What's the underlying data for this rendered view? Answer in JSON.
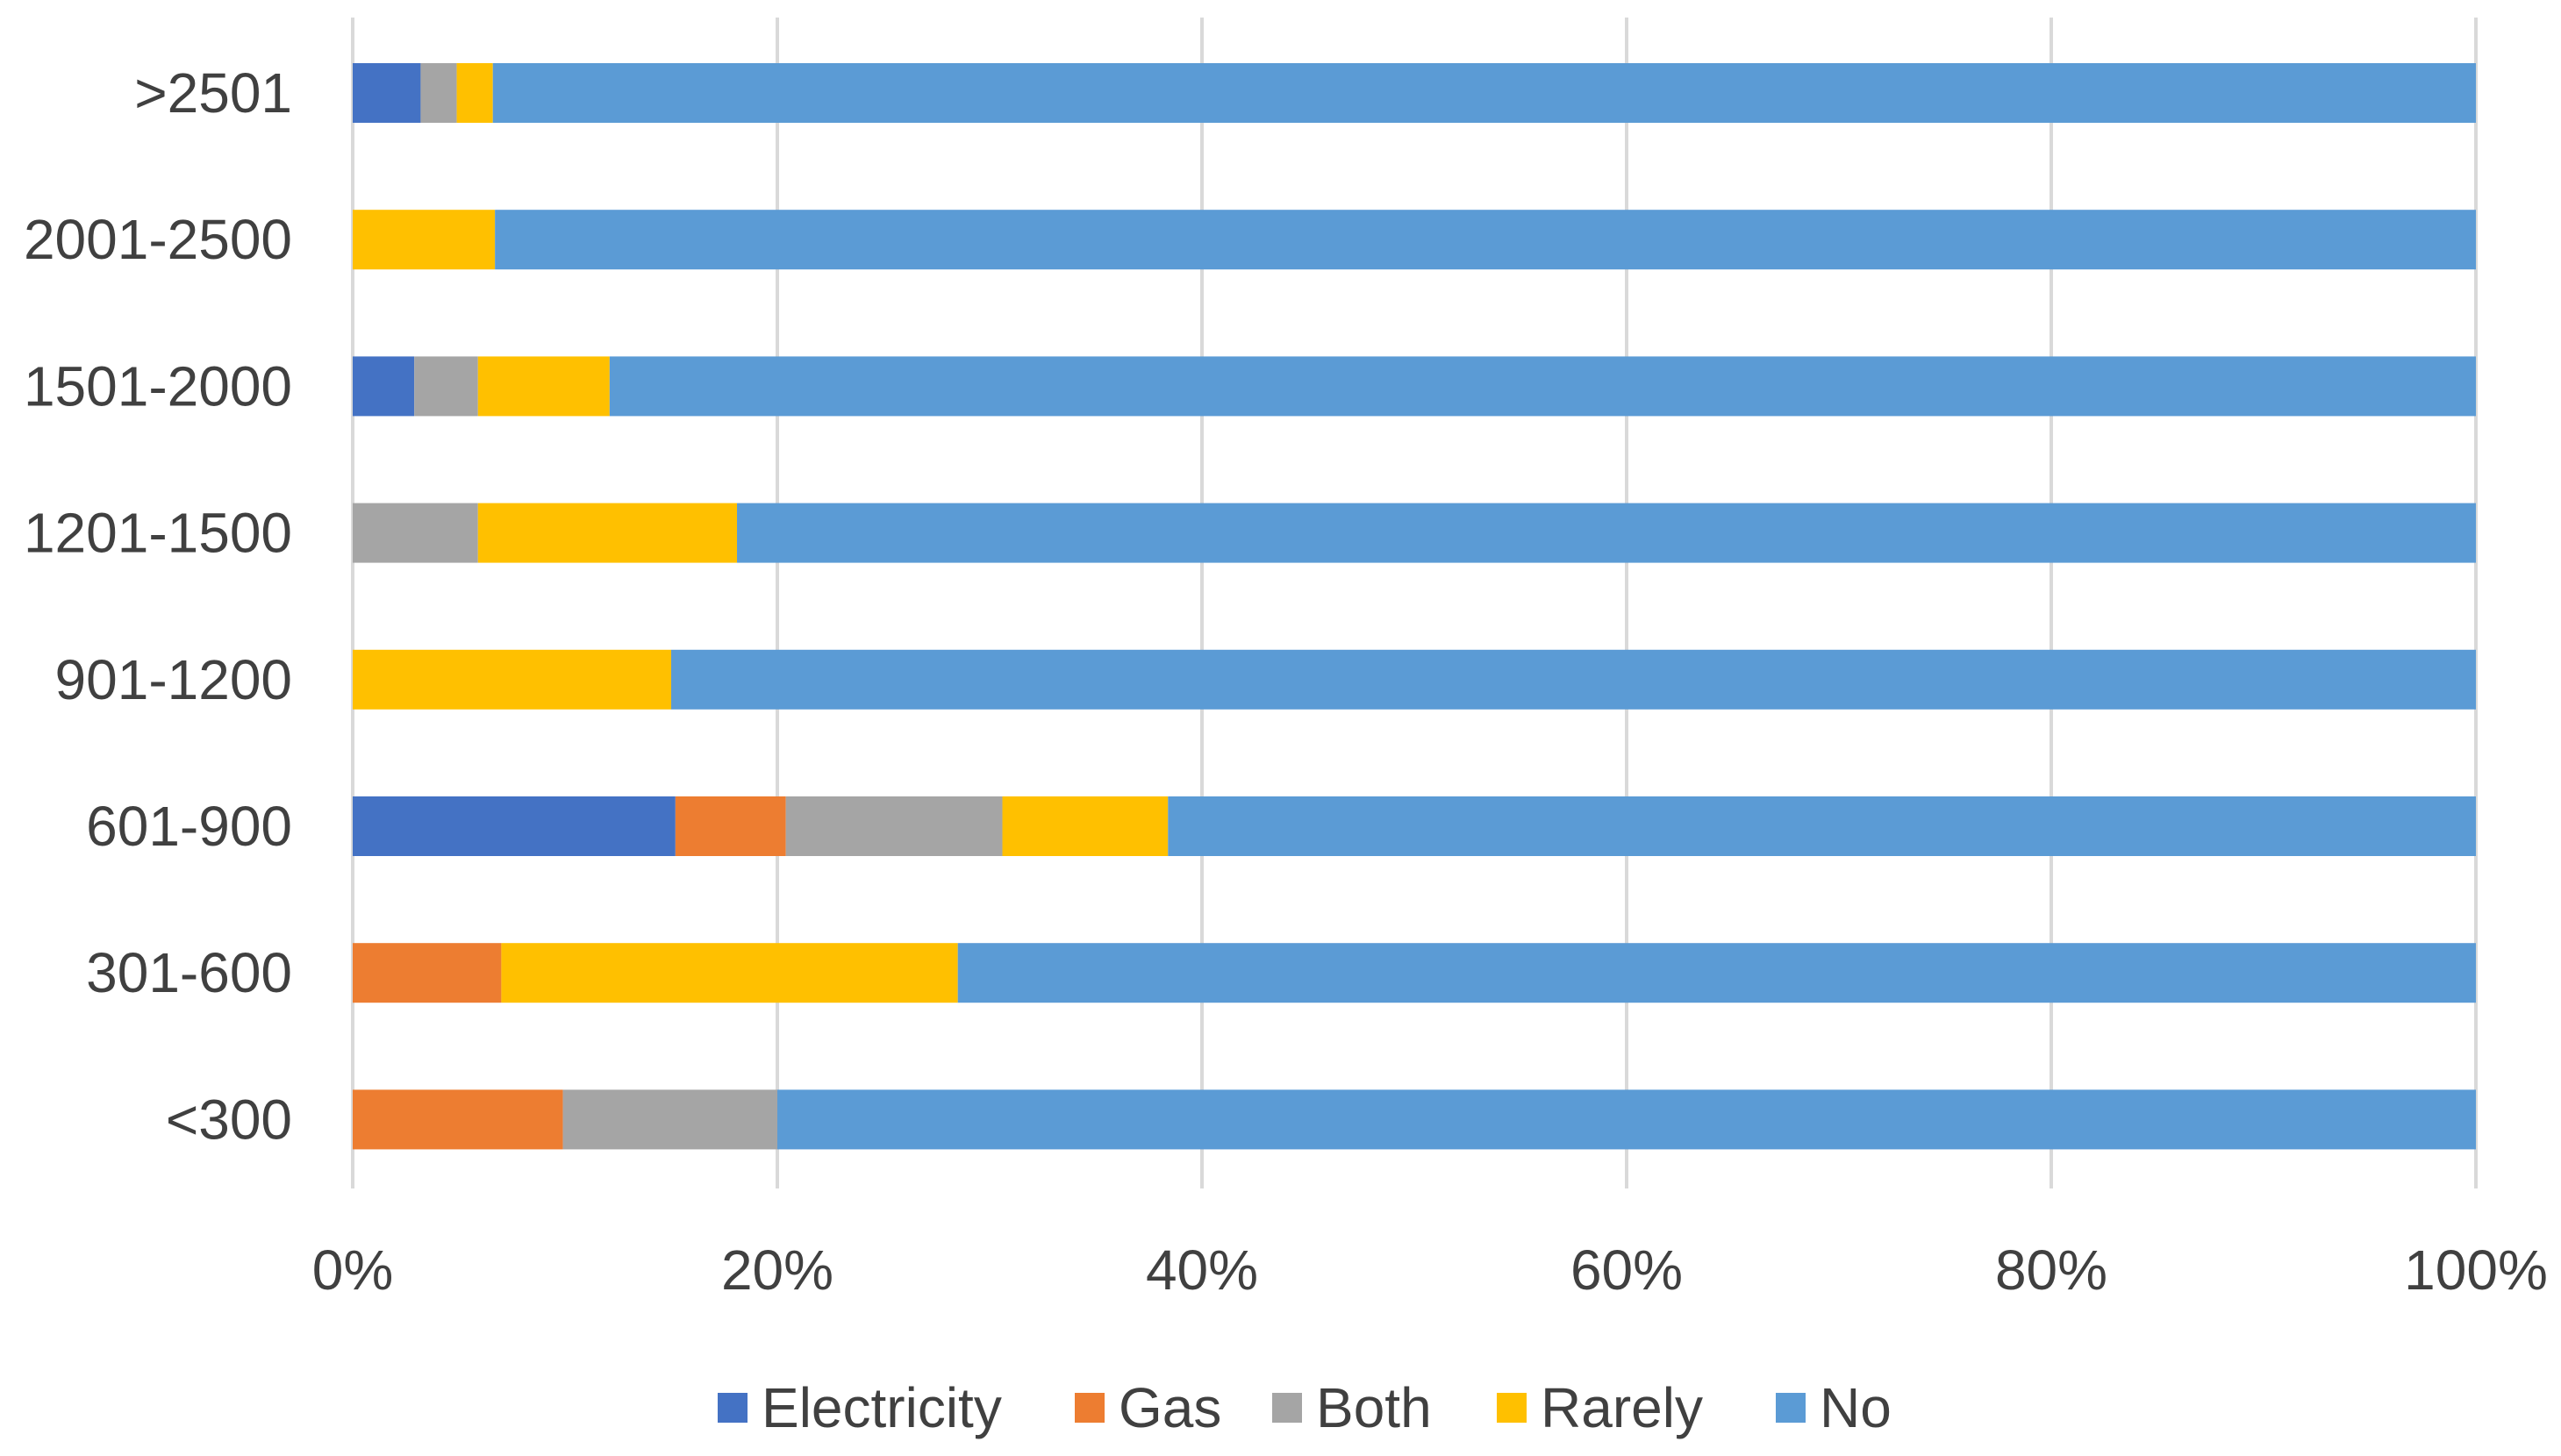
{
  "chart_data": {
    "type": "bar",
    "orientation": "horizontal",
    "stacked": "percent",
    "title": "",
    "xlabel": "",
    "ylabel": "",
    "xlim": [
      0,
      100
    ],
    "x_ticks": [
      "0%",
      "20%",
      "40%",
      "60%",
      "80%",
      "100%"
    ],
    "x_tick_values": [
      0,
      20,
      40,
      60,
      80,
      100
    ],
    "grid": true,
    "legend_position": "bottom",
    "categories": [
      ">2501",
      "2001-2500",
      "1501-2000",
      "1201-1500",
      "901-1200",
      "601-900",
      "301-600",
      "<300"
    ],
    "series": [
      {
        "name": "Electricity",
        "color": "#4472C4",
        "values": [
          3.2,
          0,
          2.9,
          0,
          0,
          15.2,
          0,
          0
        ]
      },
      {
        "name": "Gas",
        "color": "#ED7D31",
        "values": [
          0,
          0,
          0,
          0,
          0,
          5.2,
          7.0,
          9.9
        ]
      },
      {
        "name": "Both",
        "color": "#A5A5A5",
        "values": [
          1.7,
          0,
          3.0,
          5.9,
          0,
          10.2,
          0,
          10.1
        ]
      },
      {
        "name": "Rarely",
        "color": "#FFC000",
        "values": [
          1.7,
          6.7,
          6.2,
          12.2,
          15.0,
          7.8,
          21.5,
          0
        ]
      },
      {
        "name": "No",
        "color": "#5B9BD5",
        "values": [
          93.4,
          93.3,
          87.9,
          81.9,
          85.0,
          61.6,
          71.5,
          80.0
        ]
      }
    ]
  }
}
